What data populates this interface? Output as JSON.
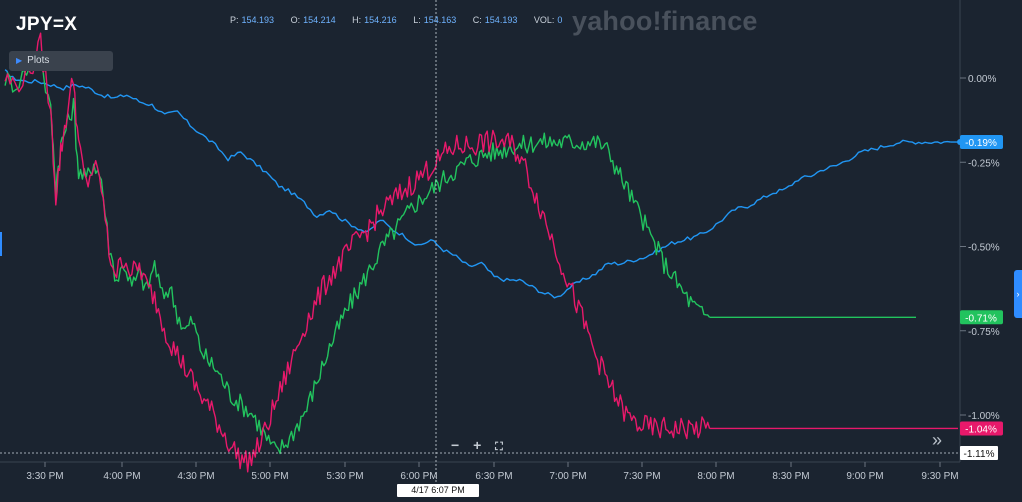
{
  "header": {
    "symbol": "JPY=X",
    "watermark": "yahoo!finance",
    "quote": {
      "p_label": "P:",
      "p_value": "154.193",
      "o_label": "O:",
      "o_value": "154.214",
      "h_label": "H:",
      "h_value": "154.216",
      "l_label": "L:",
      "l_value": "154.163",
      "c_label": "C:",
      "c_value": "154.193",
      "vol_label": "VOL:",
      "vol_value": "0"
    }
  },
  "toolbar": {
    "plots_label": "Plots",
    "zoom_out": "−",
    "zoom_in": "+",
    "fullscreen": "⛶",
    "scroll_right": "»"
  },
  "crosshair": {
    "time_label": "4/17 6:07 PM",
    "value_label": "-1.11%"
  },
  "chart_data": {
    "type": "line",
    "x_unit": "time",
    "x_ticks": [
      "3:30 PM",
      "4:00 PM",
      "4:30 PM",
      "5:00 PM",
      "5:30 PM",
      "6:00 PM",
      "6:30 PM",
      "7:00 PM",
      "7:30 PM",
      "8:00 PM",
      "8:30 PM",
      "9:00 PM",
      "9:30 PM"
    ],
    "xlim_minutes": [
      15.0,
      15.05
    ],
    "y_unit": "%",
    "y_ticks": [
      "0.00%",
      "-0.25%",
      "-0.50%",
      "-0.75%",
      "-1.00%"
    ],
    "y_tick_values": [
      0.0,
      -0.25,
      -0.5,
      -0.75,
      -1.0
    ],
    "ylim": [
      -1.17,
      0.1
    ],
    "grid": false,
    "series": [
      {
        "color": "#2196f3",
        "last_label": "-0.19%",
        "points": [
          [
            15.1,
            0.02
          ],
          [
            15.25,
            0.0
          ],
          [
            15.5,
            -0.01
          ],
          [
            15.75,
            -0.01
          ],
          [
            16.0,
            -0.02
          ],
          [
            16.25,
            -0.03
          ],
          [
            16.5,
            -0.02
          ],
          [
            16.75,
            -0.03
          ],
          [
            17.0,
            -0.05
          ],
          [
            17.25,
            -0.06
          ],
          [
            17.5,
            -0.05
          ],
          [
            17.75,
            -0.07
          ],
          [
            18.0,
            -0.08
          ],
          [
            18.25,
            -0.11
          ],
          [
            18.5,
            -0.1
          ],
          [
            18.75,
            -0.14
          ],
          [
            19.0,
            -0.17
          ],
          [
            19.25,
            -0.2
          ],
          [
            19.5,
            -0.24
          ],
          [
            19.75,
            -0.22
          ],
          [
            20.0,
            -0.25
          ],
          [
            20.25,
            -0.28
          ],
          [
            20.5,
            -0.32
          ],
          [
            20.75,
            -0.34
          ],
          [
            21.0,
            -0.37
          ],
          [
            21.25,
            -0.41
          ],
          [
            21.5,
            -0.39
          ],
          [
            21.75,
            -0.42
          ],
          [
            22.0,
            -0.44
          ],
          [
            22.25,
            -0.46
          ],
          [
            22.5,
            -0.42
          ],
          [
            22.75,
            -0.45
          ],
          [
            23.0,
            -0.47
          ],
          [
            23.25,
            -0.5
          ],
          [
            23.5,
            -0.48
          ],
          [
            23.75,
            -0.51
          ],
          [
            24.0,
            -0.53
          ],
          [
            24.25,
            -0.56
          ],
          [
            24.5,
            -0.55
          ],
          [
            24.75,
            -0.59
          ],
          [
            25.0,
            -0.6
          ],
          [
            25.25,
            -0.6
          ],
          [
            25.5,
            -0.62
          ],
          [
            25.75,
            -0.64
          ],
          [
            26.0,
            -0.65
          ],
          [
            26.25,
            -0.62
          ],
          [
            26.5,
            -0.6
          ],
          [
            26.75,
            -0.58
          ],
          [
            27.0,
            -0.55
          ],
          [
            27.25,
            -0.55
          ],
          [
            27.5,
            -0.54
          ],
          [
            27.75,
            -0.53
          ],
          [
            28.0,
            -0.51
          ],
          [
            28.25,
            -0.49
          ],
          [
            28.5,
            -0.48
          ],
          [
            28.75,
            -0.47
          ],
          [
            29.0,
            -0.45
          ],
          [
            29.25,
            -0.42
          ],
          [
            29.5,
            -0.39
          ],
          [
            29.75,
            -0.38
          ],
          [
            30.0,
            -0.36
          ],
          [
            30.25,
            -0.34
          ],
          [
            30.5,
            -0.33
          ],
          [
            30.75,
            -0.3
          ],
          [
            31.0,
            -0.29
          ],
          [
            31.25,
            -0.27
          ],
          [
            31.5,
            -0.26
          ],
          [
            31.75,
            -0.24
          ],
          [
            32.0,
            -0.22
          ],
          [
            32.25,
            -0.21
          ],
          [
            32.5,
            -0.2
          ],
          [
            32.75,
            -0.19
          ],
          [
            33.0,
            -0.19
          ],
          [
            33.25,
            -0.19
          ],
          [
            33.5,
            -0.19
          ],
          [
            33.75,
            -0.19
          ]
        ]
      },
      {
        "color": "#22c35e",
        "last_label": "-0.71%",
        "points": [
          [
            15.1,
            0.0
          ],
          [
            15.3,
            -0.02
          ],
          [
            15.6,
            0.04
          ],
          [
            15.8,
            0.05
          ],
          [
            16.0,
            -0.1
          ],
          [
            16.1,
            -0.32
          ],
          [
            16.2,
            -0.2
          ],
          [
            16.3,
            -0.15
          ],
          [
            16.45,
            -0.08
          ],
          [
            16.55,
            -0.28
          ],
          [
            16.7,
            -0.3
          ],
          [
            16.85,
            -0.25
          ],
          [
            17.0,
            -0.3
          ],
          [
            17.15,
            -0.5
          ],
          [
            17.3,
            -0.6
          ],
          [
            17.45,
            -0.55
          ],
          [
            17.6,
            -0.62
          ],
          [
            17.75,
            -0.58
          ],
          [
            17.9,
            -0.63
          ],
          [
            18.05,
            -0.55
          ],
          [
            18.2,
            -0.65
          ],
          [
            18.35,
            -0.62
          ],
          [
            18.5,
            -0.7
          ],
          [
            18.65,
            -0.75
          ],
          [
            18.8,
            -0.72
          ],
          [
            18.95,
            -0.8
          ],
          [
            19.1,
            -0.84
          ],
          [
            19.25,
            -0.86
          ],
          [
            19.4,
            -0.9
          ],
          [
            19.55,
            -0.94
          ],
          [
            19.7,
            -0.96
          ],
          [
            19.85,
            -0.98
          ],
          [
            20.0,
            -1.0
          ],
          [
            20.15,
            -1.04
          ],
          [
            20.3,
            -1.08
          ],
          [
            20.45,
            -1.11
          ],
          [
            20.6,
            -1.09
          ],
          [
            20.75,
            -1.06
          ],
          [
            20.9,
            -1.02
          ],
          [
            21.05,
            -0.98
          ],
          [
            21.2,
            -0.92
          ],
          [
            21.35,
            -0.86
          ],
          [
            21.5,
            -0.8
          ],
          [
            21.65,
            -0.75
          ],
          [
            21.8,
            -0.7
          ],
          [
            21.95,
            -0.66
          ],
          [
            22.1,
            -0.62
          ],
          [
            22.25,
            -0.58
          ],
          [
            22.4,
            -0.54
          ],
          [
            22.55,
            -0.5
          ],
          [
            22.7,
            -0.47
          ],
          [
            22.85,
            -0.44
          ],
          [
            23.0,
            -0.41
          ],
          [
            23.15,
            -0.38
          ],
          [
            23.3,
            -0.36
          ],
          [
            23.45,
            -0.34
          ],
          [
            23.6,
            -0.32
          ],
          [
            23.75,
            -0.3
          ],
          [
            23.9,
            -0.28
          ],
          [
            24.05,
            -0.27
          ],
          [
            24.2,
            -0.25
          ],
          [
            24.35,
            -0.24
          ],
          [
            24.5,
            -0.23
          ],
          [
            24.65,
            -0.22
          ],
          [
            24.8,
            -0.22
          ],
          [
            24.95,
            -0.21
          ],
          [
            25.1,
            -0.2
          ],
          [
            25.25,
            -0.2
          ],
          [
            25.4,
            -0.2
          ],
          [
            25.55,
            -0.19
          ],
          [
            25.7,
            -0.19
          ],
          [
            25.85,
            -0.19
          ],
          [
            26.0,
            -0.19
          ],
          [
            26.15,
            -0.19
          ],
          [
            26.3,
            -0.19
          ],
          [
            26.45,
            -0.19
          ],
          [
            26.6,
            -0.19
          ],
          [
            26.75,
            -0.19
          ],
          [
            26.9,
            -0.2
          ],
          [
            27.05,
            -0.23
          ],
          [
            27.2,
            -0.28
          ],
          [
            27.35,
            -0.32
          ],
          [
            27.5,
            -0.37
          ],
          [
            27.65,
            -0.41
          ],
          [
            27.8,
            -0.46
          ],
          [
            27.95,
            -0.5
          ],
          [
            28.1,
            -0.55
          ],
          [
            28.25,
            -0.58
          ],
          [
            28.4,
            -0.62
          ],
          [
            28.55,
            -0.65
          ],
          [
            28.7,
            -0.68
          ],
          [
            28.85,
            -0.7
          ],
          [
            29.0,
            -0.71
          ]
        ]
      },
      {
        "color": "#e8196b",
        "last_label": "-1.04%",
        "points": [
          [
            15.1,
            0.0
          ],
          [
            15.3,
            -0.02
          ],
          [
            15.6,
            0.02
          ],
          [
            15.8,
            0.1
          ],
          [
            16.0,
            -0.1
          ],
          [
            16.1,
            -0.35
          ],
          [
            16.2,
            -0.22
          ],
          [
            16.3,
            -0.12
          ],
          [
            16.45,
            0.0
          ],
          [
            16.55,
            -0.2
          ],
          [
            16.7,
            -0.32
          ],
          [
            16.85,
            -0.26
          ],
          [
            17.0,
            -0.32
          ],
          [
            17.15,
            -0.52
          ],
          [
            17.3,
            -0.58
          ],
          [
            17.45,
            -0.53
          ],
          [
            17.6,
            -0.58
          ],
          [
            17.75,
            -0.56
          ],
          [
            17.9,
            -0.62
          ],
          [
            18.05,
            -0.65
          ],
          [
            18.2,
            -0.72
          ],
          [
            18.35,
            -0.78
          ],
          [
            18.5,
            -0.82
          ],
          [
            18.65,
            -0.86
          ],
          [
            18.8,
            -0.9
          ],
          [
            18.95,
            -0.94
          ],
          [
            19.1,
            -0.97
          ],
          [
            19.25,
            -1.01
          ],
          [
            19.4,
            -1.05
          ],
          [
            19.55,
            -1.09
          ],
          [
            19.7,
            -1.12
          ],
          [
            19.85,
            -1.14
          ],
          [
            20.0,
            -1.12
          ],
          [
            20.15,
            -1.08
          ],
          [
            20.3,
            -1.02
          ],
          [
            20.45,
            -0.96
          ],
          [
            20.6,
            -0.9
          ],
          [
            20.75,
            -0.84
          ],
          [
            20.9,
            -0.78
          ],
          [
            21.05,
            -0.72
          ],
          [
            21.2,
            -0.68
          ],
          [
            21.35,
            -0.63
          ],
          [
            21.5,
            -0.59
          ],
          [
            21.65,
            -0.56
          ],
          [
            21.8,
            -0.53
          ],
          [
            21.95,
            -0.5
          ],
          [
            22.1,
            -0.47
          ],
          [
            22.25,
            -0.45
          ],
          [
            22.4,
            -0.42
          ],
          [
            22.55,
            -0.39
          ],
          [
            22.7,
            -0.37
          ],
          [
            22.85,
            -0.35
          ],
          [
            23.0,
            -0.33
          ],
          [
            23.15,
            -0.31
          ],
          [
            23.3,
            -0.29
          ],
          [
            23.45,
            -0.27
          ],
          [
            23.6,
            -0.25
          ],
          [
            23.75,
            -0.23
          ],
          [
            23.9,
            -0.21
          ],
          [
            24.05,
            -0.2
          ],
          [
            24.2,
            -0.2
          ],
          [
            24.35,
            -0.2
          ],
          [
            24.5,
            -0.19
          ],
          [
            24.65,
            -0.19
          ],
          [
            24.8,
            -0.19
          ],
          [
            24.95,
            -0.19
          ],
          [
            25.1,
            -0.2
          ],
          [
            25.25,
            -0.23
          ],
          [
            25.4,
            -0.28
          ],
          [
            25.55,
            -0.34
          ],
          [
            25.7,
            -0.4
          ],
          [
            25.85,
            -0.46
          ],
          [
            26.0,
            -0.52
          ],
          [
            26.15,
            -0.58
          ],
          [
            26.3,
            -0.64
          ],
          [
            26.45,
            -0.7
          ],
          [
            26.6,
            -0.76
          ],
          [
            26.75,
            -0.82
          ],
          [
            26.9,
            -0.87
          ],
          [
            27.05,
            -0.92
          ],
          [
            27.2,
            -0.96
          ],
          [
            27.35,
            -1.0
          ],
          [
            27.5,
            -1.02
          ],
          [
            27.65,
            -1.03
          ],
          [
            27.8,
            -1.04
          ],
          [
            27.95,
            -1.04
          ],
          [
            28.1,
            -1.04
          ],
          [
            28.25,
            -1.04
          ],
          [
            28.4,
            -1.04
          ],
          [
            28.55,
            -1.04
          ],
          [
            28.7,
            -1.04
          ],
          [
            28.85,
            -1.04
          ],
          [
            29.0,
            -1.04
          ]
        ]
      }
    ]
  }
}
